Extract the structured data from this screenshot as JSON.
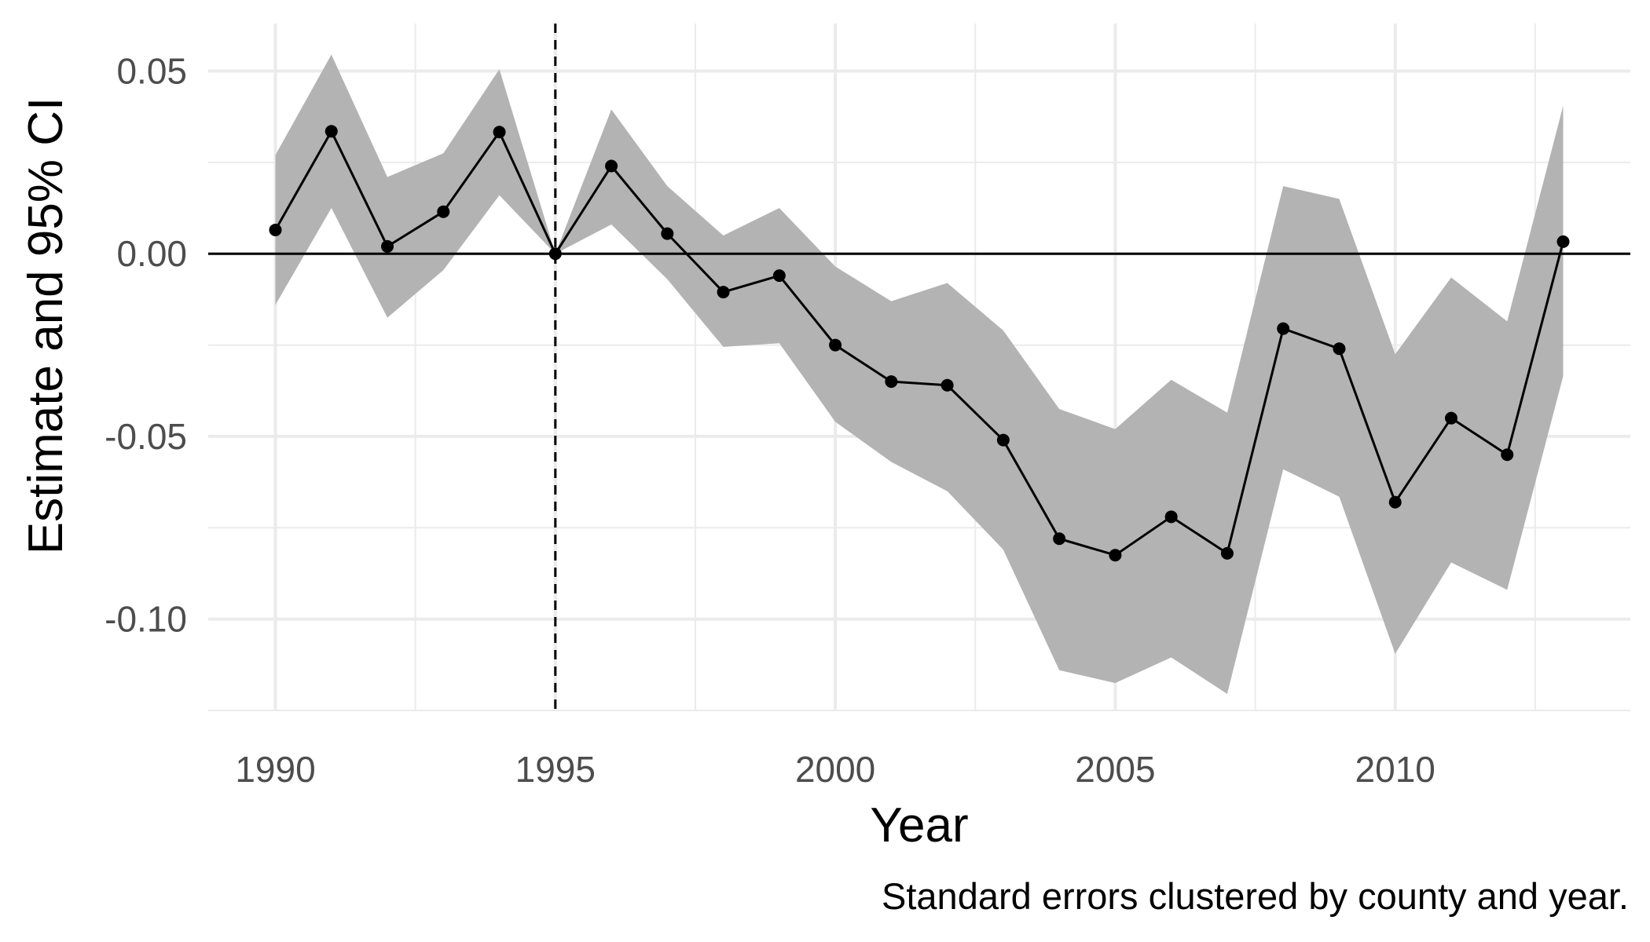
{
  "chart_data": {
    "type": "line",
    "title": "",
    "xlabel": "Year",
    "ylabel": "Estimate and 95% CI",
    "caption": "Standard errors clustered by county and year.",
    "xlim": [
      1988.8,
      2014.2
    ],
    "ylim": [
      -0.125,
      0.063
    ],
    "x_ticks": [
      1990,
      1995,
      2000,
      2005,
      2010
    ],
    "x_tick_labels": [
      "1990",
      "1995",
      "2000",
      "2005",
      "2010"
    ],
    "y_ticks": [
      0.05,
      0.0,
      -0.05,
      -0.1
    ],
    "y_tick_labels": [
      "0.05",
      "0.00",
      "-0.05",
      "-0.10"
    ],
    "grid": true,
    "reference_lines": {
      "hline_y": 0,
      "vline_x": 1995,
      "vline_style": "dashed"
    },
    "series": [
      {
        "type": "line_with_ribbon",
        "x": [
          1990,
          1991,
          1992,
          1993,
          1994,
          1995,
          1996,
          1997,
          1998,
          1999,
          2000,
          2001,
          2002,
          2003,
          2004,
          2005,
          2006,
          2007,
          2008,
          2009,
          2010,
          2011,
          2012,
          2013
        ],
        "y": [
          0.0065,
          0.0335,
          0.002,
          0.0115,
          0.0333,
          0.0,
          0.024,
          0.0055,
          -0.0105,
          -0.006,
          -0.025,
          -0.035,
          -0.036,
          -0.051,
          -0.078,
          -0.0825,
          -0.072,
          -0.082,
          -0.0205,
          -0.026,
          -0.068,
          -0.045,
          -0.055,
          0.0033
        ],
        "lower": [
          -0.014,
          0.0125,
          -0.0175,
          -0.0045,
          0.016,
          0.0,
          0.008,
          -0.007,
          -0.0255,
          -0.0245,
          -0.046,
          -0.057,
          -0.065,
          -0.081,
          -0.114,
          -0.1175,
          -0.1105,
          -0.1205,
          -0.059,
          -0.0665,
          -0.1095,
          -0.0845,
          -0.092,
          -0.0335
        ],
        "upper": [
          0.027,
          0.0545,
          0.021,
          0.0275,
          0.0505,
          0.0,
          0.0395,
          0.0185,
          0.005,
          0.0125,
          -0.0035,
          -0.013,
          -0.008,
          -0.021,
          -0.0425,
          -0.048,
          -0.0345,
          -0.0435,
          0.0185,
          0.015,
          -0.0275,
          -0.0065,
          -0.0185,
          0.0405
        ]
      }
    ]
  },
  "colors": {
    "background": "#ffffff",
    "grid": "#ebebeb",
    "ribbon": "#b3b3b3",
    "line": "#000000",
    "tick_text": "#4d4d4d"
  }
}
